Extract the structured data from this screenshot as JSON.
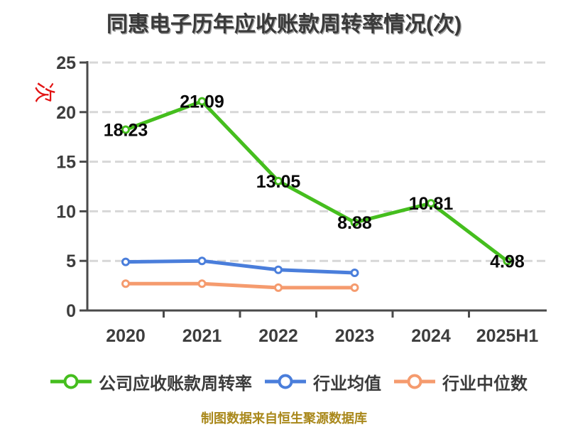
{
  "title": "同惠电子历年应收账款周转率情况(次)",
  "footer_note": "制图数据来自恒生聚源数据库",
  "y_axis_unit": "次",
  "chart_data": {
    "type": "line",
    "title": "同惠电子历年应收账款周转率情况(次)",
    "categories": [
      "2020",
      "2021",
      "2022",
      "2023",
      "2024",
      "2025H1"
    ],
    "y_ticks": [
      0,
      5,
      10,
      15,
      20,
      25
    ],
    "ylim": [
      0,
      25
    ],
    "grid": "horizontal-dashed",
    "legend_position": "bottom",
    "series": [
      {
        "name": "公司应收账款周转率",
        "color": "#45be1e",
        "values": [
          18.23,
          21.09,
          13.05,
          8.88,
          10.81,
          4.98
        ],
        "point_labels": [
          "18.23",
          "21.09",
          "13.05",
          "8.88",
          "10.81",
          "4.98"
        ]
      },
      {
        "name": "行业均值",
        "color": "#4a7edb",
        "values": [
          4.9,
          5.0,
          4.1,
          3.8,
          null,
          null
        ],
        "point_labels": null
      },
      {
        "name": "行业中位数",
        "color": "#f59b6e",
        "values": [
          2.7,
          2.7,
          2.3,
          2.3,
          null,
          null
        ],
        "point_labels": null
      }
    ]
  },
  "colors": {
    "background": "#ffffff",
    "title_text": "#3a3a3a",
    "axis_line": "#4a4a4a",
    "axis_label": "#3d3d3d",
    "grid_line": "#d7d7d7",
    "data_label": "#0a0a0a",
    "unit_label_red": "#e21313",
    "footer_gold": "#a9881b"
  }
}
